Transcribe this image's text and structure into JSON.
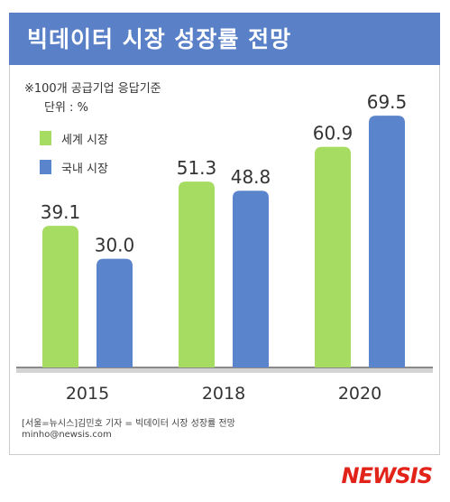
{
  "title": "빅데이터 시장 성장률 전망",
  "notes": {
    "basis": "※100개 공급기업 응답기준",
    "unit": "단위 : %"
  },
  "colors": {
    "title_bar": "#5a80c8",
    "world": "#a6dc62",
    "domestic": "#5a85cc",
    "frame": "#cccccc",
    "logo": "#e2231a"
  },
  "chart_data": {
    "type": "bar",
    "categories": [
      "2015",
      "2018",
      "2020"
    ],
    "series": [
      {
        "name": "세계 시장",
        "values": [
          39.1,
          51.3,
          60.9
        ]
      },
      {
        "name": "국내 시장",
        "values": [
          30.0,
          48.8,
          69.5
        ]
      }
    ],
    "value_labels": [
      [
        "39.1",
        "51.3",
        "60.9"
      ],
      [
        "30.0",
        "48.8",
        "69.5"
      ]
    ],
    "ylim": [
      0,
      80
    ],
    "grid": false,
    "legend_position": "top-left",
    "unit": "%"
  },
  "footer": {
    "source": "[서울=뉴시스]김민호 기자 = 빅데이터 시장 성장률 전망",
    "email": "minho@newsis.com"
  },
  "logo": "NEWSIS"
}
